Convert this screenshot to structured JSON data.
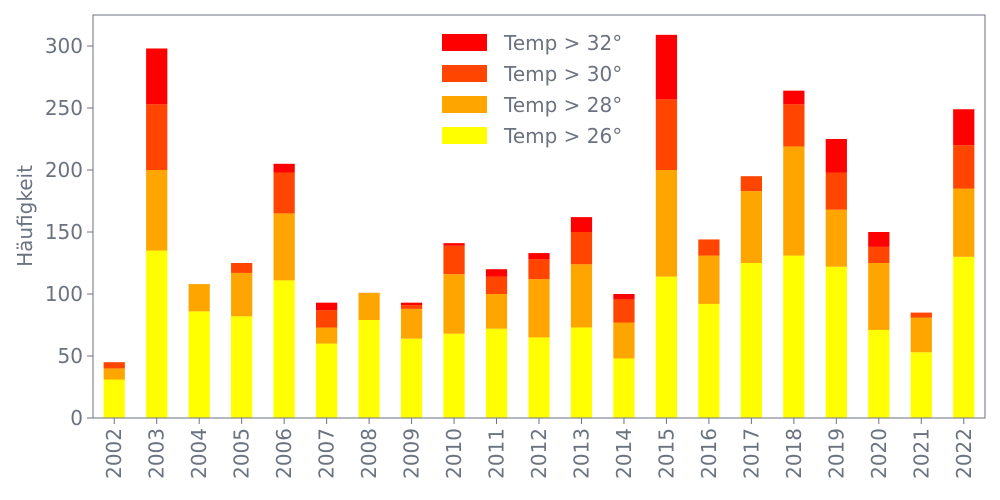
{
  "chart_data": {
    "type": "bar",
    "stacked": true,
    "title": "",
    "xlabel": "",
    "ylabel": "Häufigkeit",
    "ylim": [
      0,
      325
    ],
    "yticks": [
      0,
      50,
      100,
      150,
      200,
      250,
      300
    ],
    "grid": false,
    "legend_position": "top-center",
    "categories": [
      "2002",
      "2003",
      "2004",
      "2005",
      "2006",
      "2007",
      "2008",
      "2009",
      "2010",
      "2011",
      "2012",
      "2013",
      "2014",
      "2015",
      "2016",
      "2017",
      "2018",
      "2019",
      "2020",
      "2021",
      "2022"
    ],
    "series": [
      {
        "name": "Temp > 26°",
        "color": "#ffff00",
        "values": [
          31,
          135,
          86,
          82,
          111,
          60,
          79,
          64,
          68,
          72,
          65,
          73,
          48,
          114,
          92,
          125,
          131,
          122,
          71,
          53,
          130
        ]
      },
      {
        "name": "Temp > 28°",
        "color": "#ffa500",
        "values": [
          9,
          65,
          22,
          35,
          54,
          13,
          22,
          24,
          48,
          28,
          47,
          51,
          29,
          86,
          39,
          58,
          88,
          46,
          54,
          28,
          55
        ]
      },
      {
        "name": "Temp > 30°",
        "color": "#ff4500",
        "values": [
          5,
          53,
          0,
          8,
          33,
          14,
          0,
          3,
          23,
          14,
          16,
          26,
          19,
          57,
          13,
          12,
          34,
          30,
          13,
          4,
          35
        ]
      },
      {
        "name": "Temp > 32°",
        "color": "#ff0000",
        "values": [
          0,
          45,
          0,
          0,
          7,
          6,
          0,
          2,
          2,
          6,
          5,
          12,
          4,
          52,
          0,
          0,
          11,
          27,
          12,
          0,
          29
        ]
      }
    ]
  }
}
